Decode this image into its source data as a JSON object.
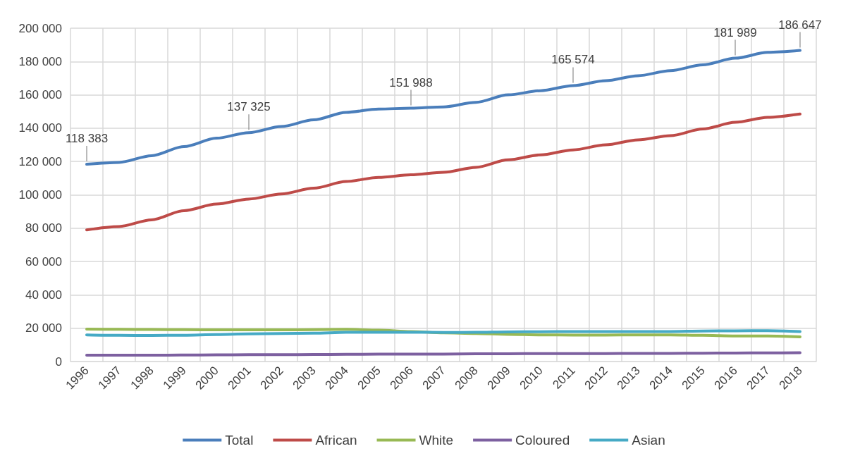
{
  "chart_data": {
    "type": "line",
    "categories": [
      "1996",
      "1997",
      "1998",
      "1999",
      "2000",
      "2001",
      "2002",
      "2003",
      "2004",
      "2005",
      "2006",
      "2007",
      "2008",
      "2009",
      "2010",
      "2011",
      "2012",
      "2013",
      "2014",
      "2015",
      "2016",
      "2017",
      "2018"
    ],
    "series": [
      {
        "name": "Total",
        "color": "#4a7ebb",
        "values": [
          118383,
          119500,
          123500,
          129000,
          134000,
          137325,
          141000,
          145000,
          149500,
          151500,
          151988,
          152800,
          155500,
          160000,
          162500,
          165574,
          168500,
          171500,
          174500,
          178000,
          181989,
          185500,
          186647
        ],
        "value_labels": [
          "118 383",
          null,
          null,
          null,
          null,
          "137 325",
          null,
          null,
          null,
          null,
          "151 988",
          null,
          null,
          null,
          null,
          "165 574",
          null,
          null,
          null,
          null,
          "181 989",
          null,
          "186 647"
        ]
      },
      {
        "name": "African",
        "color": "#be4b48",
        "values": [
          79000,
          81000,
          85000,
          90500,
          94500,
          97500,
          100500,
          104000,
          108000,
          110500,
          112000,
          113500,
          116500,
          121000,
          124000,
          127000,
          130000,
          133000,
          135500,
          139500,
          143500,
          146500,
          148500
        ]
      },
      {
        "name": "White",
        "color": "#98b954",
        "values": [
          19500,
          19300,
          19200,
          19100,
          19000,
          19000,
          19000,
          19100,
          19300,
          18800,
          18000,
          17200,
          16800,
          16300,
          16000,
          15900,
          15900,
          16000,
          16000,
          15700,
          15300,
          15300,
          14800
        ]
      },
      {
        "name": "Coloured",
        "color": "#7d60a0",
        "values": [
          3800,
          3800,
          3800,
          3900,
          4000,
          4100,
          4100,
          4200,
          4300,
          4400,
          4400,
          4400,
          4600,
          4700,
          4800,
          4800,
          4800,
          4900,
          4900,
          5000,
          5100,
          5200,
          5300
        ]
      },
      {
        "name": "Asian",
        "color": "#46aac5",
        "values": [
          16000,
          15700,
          15600,
          15800,
          16200,
          16600,
          16800,
          17000,
          17500,
          17600,
          17600,
          17400,
          17500,
          17800,
          17900,
          18000,
          18000,
          18000,
          18000,
          18300,
          18400,
          18500,
          18000
        ]
      }
    ],
    "ylim": [
      0,
      200000
    ],
    "yticks": [
      {
        "value": 0,
        "label": "0"
      },
      {
        "value": 20000,
        "label": "20 000"
      },
      {
        "value": 40000,
        "label": "40 000"
      },
      {
        "value": 60000,
        "label": "60 000"
      },
      {
        "value": 80000,
        "label": "80 000"
      },
      {
        "value": 100000,
        "label": "100 000"
      },
      {
        "value": 120000,
        "label": "120 000"
      },
      {
        "value": 140000,
        "label": "140 000"
      },
      {
        "value": 160000,
        "label": "160 000"
      },
      {
        "value": 180000,
        "label": "180 000"
      },
      {
        "value": 200000,
        "label": "200 000"
      }
    ],
    "grid": true,
    "legend": "bottom",
    "marker": "none",
    "line_style": "solid"
  }
}
